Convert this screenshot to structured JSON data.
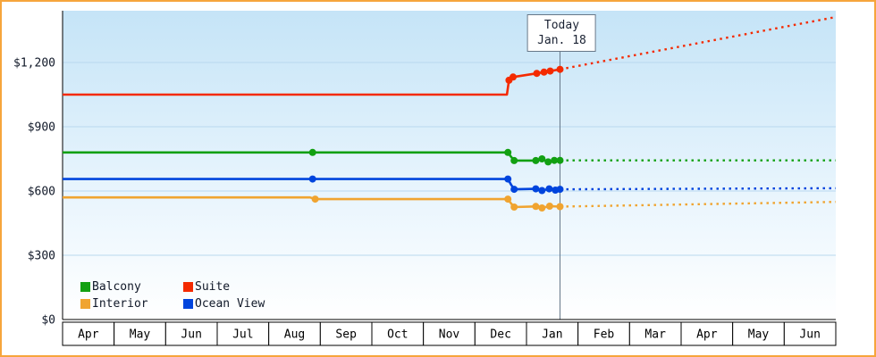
{
  "chart_data": {
    "type": "line",
    "x_units": "month_index (0 = start of first Apr, 15 = end of last Jun)",
    "months": [
      "Apr",
      "May",
      "Jun",
      "Jul",
      "Aug",
      "Sep",
      "Oct",
      "Nov",
      "Dec",
      "Jan",
      "Feb",
      "Mar",
      "Apr",
      "May",
      "Jun"
    ],
    "yticks": [
      {
        "value": 0,
        "label": "$0"
      },
      {
        "value": 300,
        "label": "$300"
      },
      {
        "value": 600,
        "label": "$600"
      },
      {
        "value": 900,
        "label": "$900"
      },
      {
        "value": 1200,
        "label": "$1,200"
      }
    ],
    "ylim": [
      0,
      1440
    ],
    "grid": true,
    "today": {
      "line1": "Today",
      "line2": "Jan. 18",
      "month_index": 9.65
    },
    "legend": {
      "position": "bottom-left-inside",
      "rows": [
        [
          "Balcony",
          "Suite"
        ],
        [
          "Interior",
          "Ocean View"
        ]
      ]
    },
    "series": [
      {
        "name": "Interior",
        "color": "#f0a430",
        "solid": [
          [
            0,
            570
          ],
          [
            4.8,
            570
          ],
          [
            4.9,
            562
          ],
          [
            8.64,
            562
          ],
          [
            8.7,
            542
          ],
          [
            8.76,
            525
          ],
          [
            9.18,
            528
          ],
          [
            9.3,
            521
          ],
          [
            9.45,
            529
          ],
          [
            9.65,
            527
          ]
        ],
        "markers": [
          [
            4.9,
            562
          ],
          [
            8.64,
            562
          ],
          [
            8.76,
            525
          ],
          [
            9.18,
            528
          ],
          [
            9.3,
            521
          ],
          [
            9.45,
            529
          ],
          [
            9.65,
            527
          ]
        ],
        "dotted": [
          [
            9.65,
            527
          ],
          [
            15,
            549
          ]
        ]
      },
      {
        "name": "Ocean View",
        "color": "#0044dd",
        "solid": [
          [
            0,
            656
          ],
          [
            4.85,
            656
          ],
          [
            8.64,
            656
          ],
          [
            8.7,
            630
          ],
          [
            8.76,
            608
          ],
          [
            9.18,
            610
          ],
          [
            9.3,
            602
          ],
          [
            9.44,
            610
          ],
          [
            9.56,
            604
          ],
          [
            9.65,
            608
          ]
        ],
        "markers": [
          [
            4.85,
            656
          ],
          [
            8.64,
            656
          ],
          [
            8.76,
            608
          ],
          [
            9.18,
            610
          ],
          [
            9.3,
            602
          ],
          [
            9.44,
            610
          ],
          [
            9.56,
            604
          ],
          [
            9.65,
            608
          ]
        ],
        "dotted": [
          [
            9.65,
            608
          ],
          [
            15,
            613
          ]
        ]
      },
      {
        "name": "Balcony",
        "color": "#12a012",
        "solid": [
          [
            0,
            780
          ],
          [
            4.85,
            780
          ],
          [
            8.64,
            780
          ],
          [
            8.7,
            760
          ],
          [
            8.76,
            742
          ],
          [
            9.18,
            742
          ],
          [
            9.3,
            750
          ],
          [
            9.42,
            736
          ],
          [
            9.54,
            743
          ],
          [
            9.65,
            743
          ]
        ],
        "markers": [
          [
            4.85,
            780
          ],
          [
            8.64,
            780
          ],
          [
            8.76,
            742
          ],
          [
            9.18,
            742
          ],
          [
            9.3,
            750
          ],
          [
            9.42,
            736
          ],
          [
            9.54,
            743
          ],
          [
            9.65,
            743
          ]
        ],
        "dotted": [
          [
            9.65,
            743
          ],
          [
            15,
            743
          ]
        ]
      },
      {
        "name": "Suite",
        "color": "#f42a00",
        "solid": [
          [
            0,
            1050
          ],
          [
            8.62,
            1050
          ],
          [
            8.66,
            1117
          ],
          [
            8.74,
            1132
          ],
          [
            9.2,
            1149
          ],
          [
            9.34,
            1155
          ],
          [
            9.46,
            1160
          ],
          [
            9.65,
            1168
          ]
        ],
        "markers": [
          [
            8.66,
            1117
          ],
          [
            8.74,
            1132
          ],
          [
            9.2,
            1149
          ],
          [
            9.34,
            1155
          ],
          [
            9.46,
            1160
          ],
          [
            9.65,
            1168
          ]
        ],
        "dotted": [
          [
            9.65,
            1168
          ],
          [
            15,
            1412
          ]
        ]
      }
    ],
    "style": {
      "frame_border": "#f6a53c",
      "grid_color": "#b9d8ef",
      "plot_gradient_top": "#c5e4f7",
      "plot_gradient_bottom": "#ffffff",
      "axis_color": "#000000",
      "today_line_color": "#667788",
      "text_color": "#101828"
    }
  }
}
